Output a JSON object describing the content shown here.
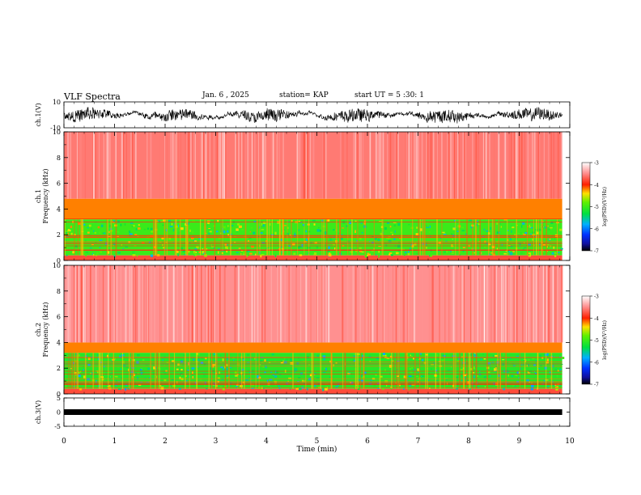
{
  "header": {
    "title": "VLF Spectra",
    "date": "Jan. 6 , 2025",
    "station": "station= KAP",
    "start": "start UT = 5 :30: 1"
  },
  "colors": {
    "spectrogram_base": "#ff2020",
    "band_green": "#40e030",
    "band_yellow": "#ffe000",
    "trace": "#000000"
  },
  "chart_data": [
    {
      "type": "line",
      "panel": "ch1-waveform",
      "ylabel": "ch.1(V)",
      "ylim": [
        -10,
        10
      ],
      "y_ticks": [
        "10",
        "-10"
      ],
      "xlim": [
        0,
        10
      ],
      "x_end_data": 9.85,
      "description_values": {
        "typical_range": [
          -8,
          6
        ]
      }
    },
    {
      "type": "heatmap",
      "panel": "ch1-spectrogram",
      "ylabel": "ch.1\nFrequency (kHz)",
      "ylim": [
        0,
        10
      ],
      "y_ticks": [
        "0",
        "2",
        "4",
        "6",
        "8",
        "10"
      ],
      "xlim": [
        0,
        10
      ],
      "x_end_data": 9.85,
      "bands": [
        {
          "from": 0,
          "to": 0.4,
          "level": -3.8
        },
        {
          "from": 0.4,
          "to": 3.2,
          "level": -5.0
        },
        {
          "from": 3.2,
          "to": 4.8,
          "level": -4.2
        },
        {
          "from": 4.8,
          "to": 10,
          "level": -3.6
        }
      ],
      "colorbar": {
        "label": "log(PSD)(V²/Hz)",
        "ticks": [
          "-3",
          "-4",
          "-5",
          "-6",
          "-7"
        ],
        "range": [
          -7,
          -3
        ]
      }
    },
    {
      "type": "heatmap",
      "panel": "ch2-spectrogram",
      "ylabel": "ch.2\nFrequency (kHz)",
      "ylim": [
        0,
        10
      ],
      "y_ticks": [
        "0",
        "2",
        "4",
        "6",
        "8",
        "10"
      ],
      "xlim": [
        0,
        10
      ],
      "x_end_data": 9.85,
      "bands": [
        {
          "from": 0,
          "to": 0.4,
          "level": -3.8
        },
        {
          "from": 0.4,
          "to": 3.2,
          "level": -5.1
        },
        {
          "from": 3.2,
          "to": 4.0,
          "level": -4.2
        },
        {
          "from": 4.0,
          "to": 10,
          "level": -3.5
        }
      ],
      "colorbar": {
        "label": "log(PSD)(V²/Hz)",
        "ticks": [
          "-3",
          "-4",
          "-5",
          "-6",
          "-7"
        ],
        "range": [
          -7,
          -3
        ]
      }
    },
    {
      "type": "line",
      "panel": "ch3-waveform",
      "ylabel": "ch.3(V)",
      "ylim": [
        -5,
        5
      ],
      "y_ticks": [
        "5",
        "0",
        "-5"
      ],
      "xlim": [
        0,
        10
      ],
      "x_end_data": 9.85,
      "level": 0
    }
  ],
  "x_axis": {
    "label": "Time (min)",
    "ticks": [
      "0",
      "1",
      "2",
      "3",
      "4",
      "5",
      "6",
      "7",
      "8",
      "9",
      "10"
    ]
  }
}
